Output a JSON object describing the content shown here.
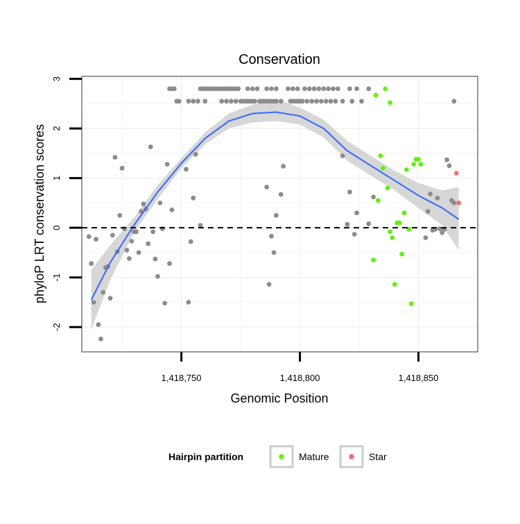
{
  "chart_data": {
    "type": "scatter",
    "title": "Conservation",
    "xlabel": "Genomic Position",
    "ylabel": "phyloP LRT conservation scores",
    "xlim": [
      1418708,
      1418875
    ],
    "ylim": [
      -2.5,
      3.05
    ],
    "x_ticks": [
      1418750,
      1418800,
      1418850
    ],
    "x_tick_labels": [
      "1,418,750",
      "1,418,800",
      "1,418,850"
    ],
    "y_ticks": [
      -2,
      -1,
      0,
      1,
      2,
      3
    ],
    "y_tick_labels": [
      "-2",
      "-1",
      "0",
      "1",
      "2",
      "3"
    ],
    "reference_line": {
      "y": 0,
      "style": "dashed"
    },
    "legend": {
      "title": "Hairpin partition",
      "position": "bottom",
      "entries": [
        {
          "label": "Mature",
          "color": "#66ee11"
        },
        {
          "label": "Star",
          "color": "#f07068"
        }
      ]
    },
    "colors": {
      "other": "#8c8c8c",
      "mature": "#66ee11",
      "star": "#f07068",
      "smooth": "#3366ff",
      "band": "#d3d3d3"
    },
    "series": [
      {
        "name": "Other",
        "points": [
          [
            1418711,
            -0.18
          ],
          [
            1418712,
            -0.72
          ],
          [
            1418713,
            -1.5
          ],
          [
            1418714,
            -0.23
          ],
          [
            1418715,
            -1.95
          ],
          [
            1418716,
            -2.24
          ],
          [
            1418717,
            -1.3
          ],
          [
            1418718,
            -0.8
          ],
          [
            1418719,
            -0.78
          ],
          [
            1418720,
            -1.42
          ],
          [
            1418721,
            -0.15
          ],
          [
            1418722,
            1.42
          ],
          [
            1418723,
            -0.48
          ],
          [
            1418724,
            0.25
          ],
          [
            1418725,
            1.2
          ],
          [
            1418726,
            -0.02
          ],
          [
            1418727,
            -0.45
          ],
          [
            1418728,
            -0.62
          ],
          [
            1418729,
            -0.27
          ],
          [
            1418730,
            -0.08
          ],
          [
            1418731,
            -0.08
          ],
          [
            1418732,
            -0.5
          ],
          [
            1418733,
            0.33
          ],
          [
            1418734,
            0.48
          ],
          [
            1418735,
            0.38
          ],
          [
            1418736,
            -0.32
          ],
          [
            1418737,
            1.63
          ],
          [
            1418738,
            -0.08
          ],
          [
            1418739,
            -0.63
          ],
          [
            1418740,
            -0.98
          ],
          [
            1418741,
            0.5
          ],
          [
            1418742,
            -0.02
          ],
          [
            1418743,
            -1.52
          ],
          [
            1418744,
            1.28
          ],
          [
            1418745,
            -0.72
          ],
          [
            1418746,
            0.36
          ],
          [
            1418752,
            1.18
          ],
          [
            1418753,
            -1.5
          ],
          [
            1418754,
            -0.28
          ],
          [
            1418755,
            0.6
          ],
          [
            1418756,
            1.48
          ],
          [
            1418758,
            0.05
          ],
          [
            1418786,
            0.82
          ],
          [
            1418787,
            -1.14
          ],
          [
            1418788,
            -0.17
          ],
          [
            1418789,
            -0.5
          ],
          [
            1418790,
            0.25
          ],
          [
            1418792,
            0.67
          ],
          [
            1418793,
            1.24
          ],
          [
            1418818,
            1.45
          ],
          [
            1418820,
            0.07
          ],
          [
            1418821,
            0.72
          ],
          [
            1418823,
            -0.13
          ],
          [
            1418824,
            0.3
          ],
          [
            1418829,
            0.08
          ],
          [
            1418831,
            0.62
          ],
          [
            1418853,
            -0.2
          ],
          [
            1418854,
            0.33
          ],
          [
            1418855,
            0.68
          ],
          [
            1418856,
            -0.05
          ],
          [
            1418857,
            -0.03
          ],
          [
            1418858,
            0.6
          ],
          [
            1418859,
            -0.02
          ],
          [
            1418860,
            -0.1
          ],
          [
            1418861,
            -0.03
          ],
          [
            1418862,
            1.37
          ],
          [
            1418863,
            1.25
          ],
          [
            1418864,
            0.55
          ],
          [
            1418865,
            0.5
          ],
          [
            1418865,
            2.55
          ],
          [
            1418745,
            2.8
          ],
          [
            1418746,
            2.8
          ],
          [
            1418747,
            2.8
          ],
          [
            1418748,
            2.55
          ],
          [
            1418749,
            2.55
          ],
          [
            1418753,
            2.55
          ],
          [
            1418755,
            2.55
          ],
          [
            1418757,
            2.55
          ],
          [
            1418758,
            2.8
          ],
          [
            1418759,
            2.8
          ],
          [
            1418760,
            2.55
          ],
          [
            1418760,
            2.8
          ],
          [
            1418761,
            2.8
          ],
          [
            1418762,
            2.8
          ],
          [
            1418763,
            2.8
          ],
          [
            1418764,
            2.8
          ],
          [
            1418765,
            2.8
          ],
          [
            1418766,
            2.8
          ],
          [
            1418767,
            2.55
          ],
          [
            1418767,
            2.8
          ],
          [
            1418768,
            2.8
          ],
          [
            1418769,
            2.55
          ],
          [
            1418769,
            2.8
          ],
          [
            1418770,
            2.8
          ],
          [
            1418771,
            2.55
          ],
          [
            1418771,
            2.8
          ],
          [
            1418772,
            2.8
          ],
          [
            1418773,
            2.55
          ],
          [
            1418773,
            2.8
          ],
          [
            1418774,
            2.8
          ],
          [
            1418775,
            2.55
          ],
          [
            1418776,
            2.55
          ],
          [
            1418777,
            2.55
          ],
          [
            1418778,
            2.55
          ],
          [
            1418778,
            2.8
          ],
          [
            1418779,
            2.55
          ],
          [
            1418780,
            2.55
          ],
          [
            1418780,
            2.8
          ],
          [
            1418781,
            2.55
          ],
          [
            1418782,
            2.8
          ],
          [
            1418783,
            2.55
          ],
          [
            1418784,
            2.55
          ],
          [
            1418785,
            2.55
          ],
          [
            1418786,
            2.55
          ],
          [
            1418786,
            2.8
          ],
          [
            1418787,
            2.55
          ],
          [
            1418788,
            2.55
          ],
          [
            1418788,
            2.8
          ],
          [
            1418789,
            2.55
          ],
          [
            1418790,
            2.55
          ],
          [
            1418790,
            2.8
          ],
          [
            1418792,
            2.55
          ],
          [
            1418795,
            2.8
          ],
          [
            1418796,
            2.55
          ],
          [
            1418797,
            2.55
          ],
          [
            1418797,
            2.8
          ],
          [
            1418798,
            2.55
          ],
          [
            1418799,
            2.55
          ],
          [
            1418799,
            2.8
          ],
          [
            1418800,
            2.55
          ],
          [
            1418801,
            2.55
          ],
          [
            1418802,
            2.8
          ],
          [
            1418803,
            2.55
          ],
          [
            1418804,
            2.8
          ],
          [
            1418805,
            2.55
          ],
          [
            1418806,
            2.8
          ],
          [
            1418807,
            2.55
          ],
          [
            1418808,
            2.8
          ],
          [
            1418809,
            2.55
          ],
          [
            1418810,
            2.8
          ],
          [
            1418811,
            2.55
          ],
          [
            1418812,
            2.8
          ],
          [
            1418813,
            2.55
          ],
          [
            1418814,
            2.8
          ],
          [
            1418815,
            2.55
          ],
          [
            1418816,
            2.8
          ],
          [
            1418818,
            2.55
          ],
          [
            1418821,
            2.8
          ],
          [
            1418822,
            2.55
          ],
          [
            1418824,
            2.8
          ],
          [
            1418826,
            2.55
          ],
          [
            1418829,
            2.8
          ]
        ]
      },
      {
        "name": "Mature",
        "points": [
          [
            1418832,
            2.67
          ],
          [
            1418836,
            2.8
          ],
          [
            1418838,
            2.52
          ],
          [
            1418834,
            1.45
          ],
          [
            1418835,
            1.2
          ],
          [
            1418837,
            0.8
          ],
          [
            1418833,
            0.55
          ],
          [
            1418831,
            -0.65
          ],
          [
            1418838,
            -0.08
          ],
          [
            1418839,
            -0.2
          ],
          [
            1418840,
            -1.14
          ],
          [
            1418841,
            0.1
          ],
          [
            1418842,
            0.1
          ],
          [
            1418843,
            -0.53
          ],
          [
            1418844,
            0.3
          ],
          [
            1418845,
            1.17
          ],
          [
            1418846,
            -0.03
          ],
          [
            1418847,
            -1.53
          ],
          [
            1418848,
            1.28
          ],
          [
            1418849,
            1.38
          ],
          [
            1418850,
            1.38
          ],
          [
            1418851,
            1.28
          ]
        ]
      },
      {
        "name": "Star",
        "points": [
          [
            1418866,
            1.1
          ],
          [
            1418867,
            0.5
          ]
        ]
      }
    ],
    "smooth": {
      "x": [
        1418712,
        1418720,
        1418730,
        1418740,
        1418750,
        1418760,
        1418770,
        1418780,
        1418790,
        1418800,
        1418810,
        1418820,
        1418830,
        1418840,
        1418850,
        1418860,
        1418867
      ],
      "y": [
        -1.45,
        -0.7,
        0.05,
        0.72,
        1.3,
        1.8,
        2.15,
        2.3,
        2.33,
        2.25,
        2.0,
        1.55,
        1.25,
        0.95,
        0.65,
        0.4,
        0.17
      ],
      "lo": [
        -2.05,
        -1.05,
        -0.1,
        0.58,
        1.2,
        1.68,
        2.0,
        2.12,
        2.15,
        2.08,
        1.82,
        1.35,
        1.05,
        0.75,
        0.4,
        0.05,
        -0.45
      ],
      "hi": [
        -0.85,
        -0.35,
        0.2,
        0.86,
        1.4,
        1.92,
        2.3,
        2.48,
        2.6,
        2.42,
        2.18,
        1.75,
        1.45,
        1.15,
        0.9,
        0.75,
        0.82
      ]
    }
  }
}
